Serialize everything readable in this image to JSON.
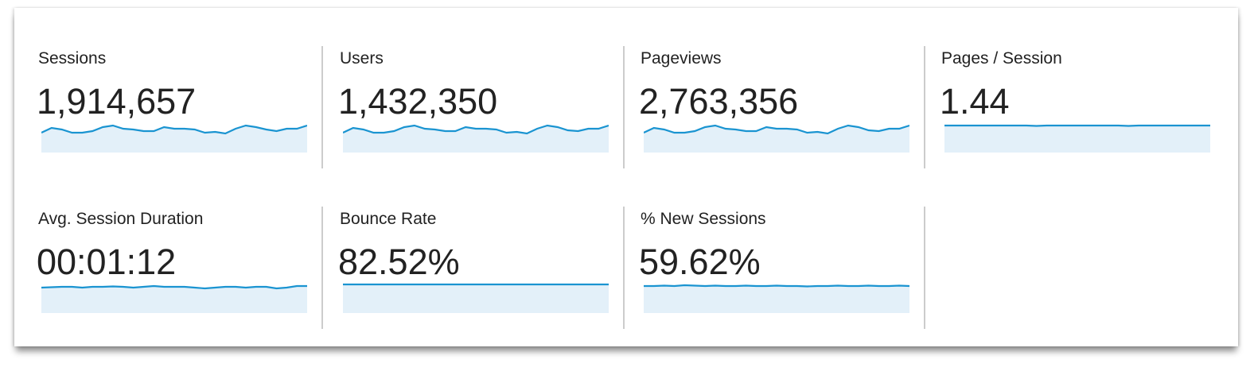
{
  "colors": {
    "line": "#1a94d1",
    "fill": "#e3f0f9"
  },
  "metrics": [
    {
      "label": "Sessions",
      "value": "1,914,657",
      "trend": [
        3,
        9,
        7,
        3,
        3,
        5,
        10,
        12,
        8,
        7,
        5,
        5,
        10,
        8,
        8,
        7,
        3,
        4,
        2,
        8,
        12,
        10,
        7,
        5,
        8,
        8,
        12
      ]
    },
    {
      "label": "Users",
      "value": "1,432,350",
      "trend": [
        3,
        9,
        7,
        3,
        3,
        5,
        10,
        12,
        8,
        7,
        5,
        5,
        10,
        8,
        8,
        7,
        3,
        4,
        2,
        8,
        12,
        10,
        6,
        5,
        8,
        8,
        12
      ]
    },
    {
      "label": "Pageviews",
      "value": "2,763,356",
      "trend": [
        3,
        9,
        7,
        3,
        3,
        5,
        10,
        12,
        8,
        7,
        5,
        5,
        10,
        8,
        8,
        7,
        3,
        4,
        2,
        8,
        12,
        10,
        6,
        5,
        8,
        8,
        12
      ]
    },
    {
      "label": "Pages / Session",
      "value": "1.44",
      "trend": [
        12,
        12,
        12,
        12,
        12,
        12,
        12,
        12,
        12,
        11.5,
        12,
        12,
        12,
        12,
        12,
        12,
        12,
        12,
        11.5,
        12,
        12,
        12,
        12,
        12,
        12,
        12,
        12
      ]
    },
    {
      "label": "Avg. Session Duration",
      "value": "00:01:12",
      "trend": [
        10,
        10.5,
        11,
        11,
        10,
        11,
        11,
        11.5,
        11,
        10,
        11,
        12,
        11,
        11,
        11,
        10,
        9,
        10,
        11,
        11,
        10,
        11,
        11,
        9,
        10,
        12,
        12
      ]
    },
    {
      "label": "Bounce Rate",
      "value": "82.52%",
      "trend": [
        14,
        14,
        14,
        14,
        14,
        14,
        14,
        14,
        14,
        14,
        14,
        14,
        14,
        14,
        14,
        14,
        14,
        14,
        14,
        14,
        14,
        14,
        14,
        14,
        14,
        14,
        14
      ]
    },
    {
      "label": "% New Sessions",
      "value": "59.62%",
      "trend": [
        12,
        12,
        12.5,
        12,
        13,
        12.5,
        12,
        12.5,
        12,
        12,
        12.5,
        12,
        12,
        12.5,
        12,
        12,
        11.5,
        12,
        12,
        12.5,
        12,
        12,
        12.5,
        12,
        12,
        12.5,
        12
      ]
    }
  ]
}
